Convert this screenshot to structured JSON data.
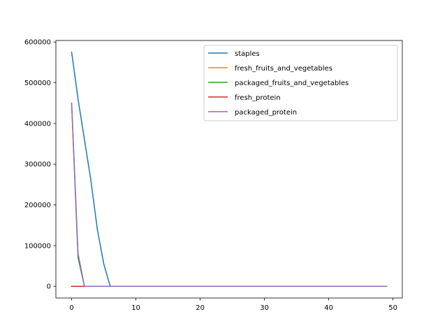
{
  "chart_data": {
    "type": "line",
    "title": "",
    "xlabel": "",
    "ylabel": "",
    "xlim": [
      -2.45,
      51.45
    ],
    "ylim": [
      -28750,
      603750
    ],
    "xticks": [
      0,
      10,
      20,
      30,
      40,
      50
    ],
    "xtick_labels": [
      "0",
      "10",
      "20",
      "30",
      "40",
      "50"
    ],
    "yticks": [
      0,
      100000,
      200000,
      300000,
      400000,
      500000,
      600000
    ],
    "ytick_labels": [
      "0",
      "100000",
      "200000",
      "300000",
      "400000",
      "500000",
      "600000"
    ],
    "grid": false,
    "legend_position": "upper right",
    "x_range": [
      0,
      49
    ],
    "series": [
      {
        "name": "staples",
        "color": "#1f77b4",
        "points": [
          [
            0,
            575000
          ],
          [
            1,
            460000
          ],
          [
            2,
            360000
          ],
          [
            3,
            260000
          ],
          [
            4,
            140000
          ],
          [
            5,
            55000
          ],
          [
            6,
            0
          ],
          [
            49,
            0
          ]
        ]
      },
      {
        "name": "fresh_fruits_and_vegetables",
        "color": "#ff7f0e",
        "points": [
          [
            0,
            0
          ],
          [
            49,
            0
          ]
        ]
      },
      {
        "name": "packaged_fruits_and_vegetables",
        "color": "#2ca02c",
        "points": [
          [
            0,
            450000
          ],
          [
            1,
            70000
          ],
          [
            2,
            0
          ],
          [
            49,
            0
          ]
        ]
      },
      {
        "name": "fresh_protein",
        "color": "#d62728",
        "points": [
          [
            0,
            0
          ],
          [
            49,
            0
          ]
        ]
      },
      {
        "name": "packaged_protein",
        "color": "#9467bd",
        "points": [
          [
            0,
            450000
          ],
          [
            1,
            80000
          ],
          [
            2,
            0
          ],
          [
            49,
            0
          ]
        ]
      }
    ]
  }
}
